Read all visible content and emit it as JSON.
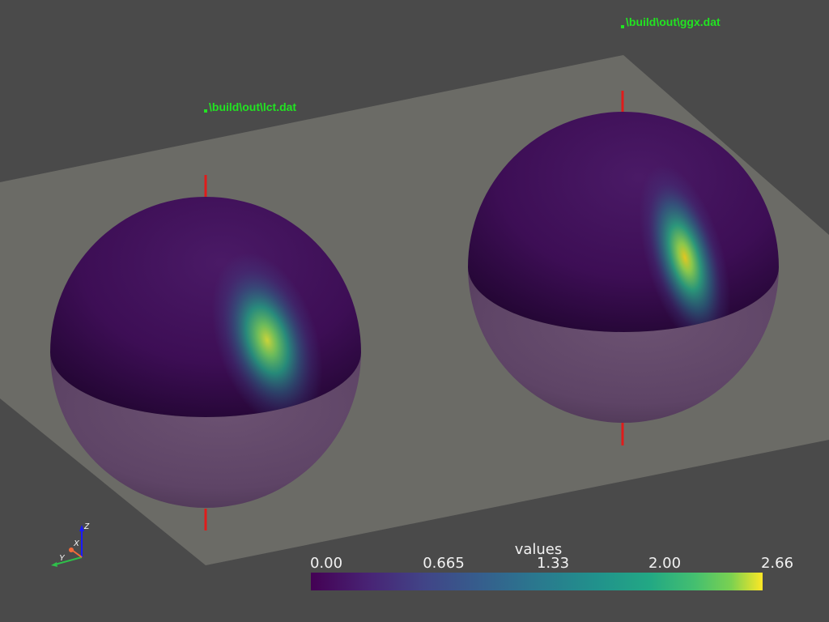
{
  "scene": {
    "background_color": "#4a4a4a",
    "plane_color": "#6b6b66",
    "objects": [
      {
        "label": "\\build\\out\\lct.dat",
        "label_color": "#22e322"
      },
      {
        "label": "\\build\\out\\ggx.dat",
        "label_color": "#22e322"
      }
    ],
    "axis_line_color": "#e01b1b"
  },
  "colorbar": {
    "title": "values",
    "ticks": [
      "0.00",
      "0.665",
      "1.33",
      "2.00",
      "2.66"
    ],
    "colormap": "viridis",
    "range": [
      0.0,
      2.66
    ]
  },
  "axes_widget": {
    "x_label": "X",
    "y_label": "Y",
    "z_label": "Z",
    "x_color": "#f26b3a",
    "y_color": "#2fbf4a",
    "z_color": "#1a1aff"
  }
}
